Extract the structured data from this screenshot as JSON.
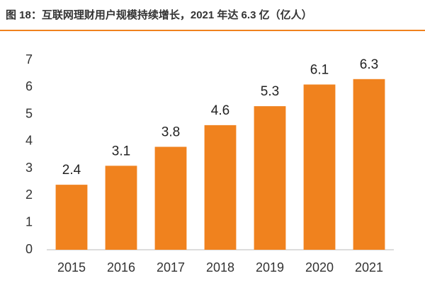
{
  "chart_data": {
    "type": "bar",
    "title": "图 18：互联网理财用户规模持续增长，2021 年达 6.3 亿（亿人）",
    "categories": [
      "2015",
      "2016",
      "2017",
      "2018",
      "2019",
      "2020",
      "2021"
    ],
    "values": [
      2.4,
      3.1,
      3.8,
      4.6,
      5.3,
      6.1,
      6.3
    ],
    "color": "#f0821e",
    "ylim": [
      0,
      7
    ],
    "yticks": [
      0,
      1,
      2,
      3,
      4,
      5,
      6,
      7
    ],
    "grid": false
  }
}
